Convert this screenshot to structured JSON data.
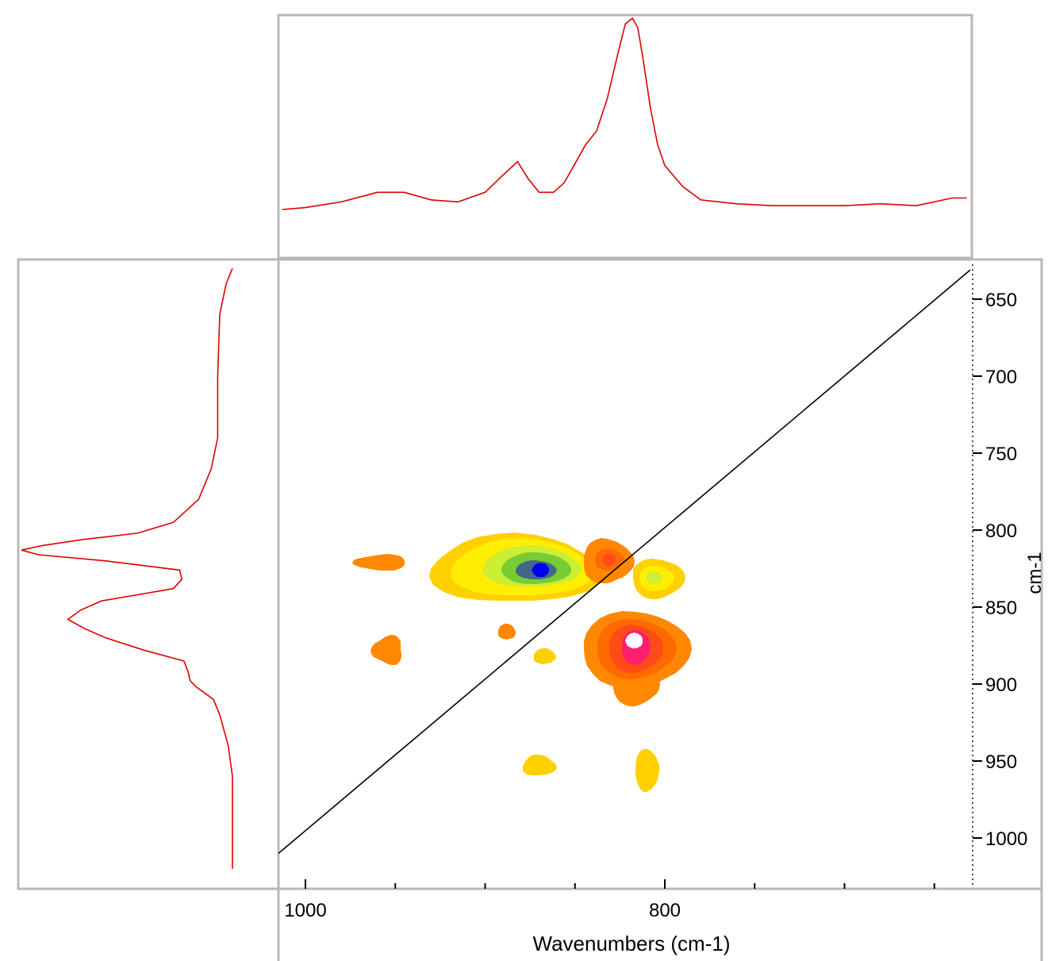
{
  "chart_data": {
    "type": "heatmap",
    "subtype": "2d-correlation-contour",
    "xlabel": "Wavenumbers (cm-1)",
    "ylabel": "cm-1",
    "x_ticks": [
      1000,
      800
    ],
    "y_ticks": [
      650,
      700,
      750,
      800,
      850,
      900,
      950,
      1000
    ],
    "x_range": [
      1015,
      630
    ],
    "y_range": [
      630,
      1025
    ],
    "diagonal": {
      "from": [
        1015,
        1010
      ],
      "to": [
        630,
        631
      ]
    },
    "contour_colors": {
      "level1": "#ffd000",
      "level2": "#ffee00",
      "level3": "#ccee33",
      "level4": "#77cc33",
      "level5": "#446688",
      "level6": "#0000ee",
      "pos1": "#ff8800",
      "pos2": "#ff6a00",
      "pos3": "#ff4a1a",
      "pos4": "#ff1f6e",
      "pos5": "#ffffff"
    },
    "peaks": [
      {
        "x": 870,
        "y": 826,
        "polarity": "negative",
        "levels": 6
      },
      {
        "x": 805,
        "y": 833,
        "polarity": "negative",
        "levels": 3
      },
      {
        "x": 832,
        "y": 818,
        "polarity": "positive",
        "levels": 3
      },
      {
        "x": 817,
        "y": 876,
        "polarity": "positive",
        "levels": 5
      },
      {
        "x": 958,
        "y": 821,
        "polarity": "positive",
        "levels": 1
      },
      {
        "x": 954,
        "y": 878,
        "polarity": "positive",
        "levels": 1
      },
      {
        "x": 888,
        "y": 866,
        "polarity": "positive",
        "levels": 1
      },
      {
        "x": 867,
        "y": 882,
        "polarity": "negative",
        "levels": 1
      },
      {
        "x": 870,
        "y": 953,
        "polarity": "negative",
        "levels": 1
      },
      {
        "x": 810,
        "y": 956,
        "polarity": "negative",
        "levels": 1
      }
    ],
    "top_spectrum": {
      "color": "#dd0000",
      "x": [
        1013,
        1000,
        980,
        960,
        945,
        930,
        915,
        900,
        890,
        882,
        876,
        870,
        862,
        856,
        850,
        844,
        838,
        832,
        826,
        822,
        818,
        815,
        812,
        808,
        804,
        800,
        790,
        780,
        760,
        740,
        720,
        700,
        680,
        660,
        640,
        632
      ],
      "y": [
        0.0,
        0.01,
        0.04,
        0.09,
        0.09,
        0.05,
        0.04,
        0.09,
        0.18,
        0.25,
        0.16,
        0.09,
        0.09,
        0.14,
        0.24,
        0.34,
        0.41,
        0.58,
        0.82,
        0.97,
        1.0,
        0.95,
        0.78,
        0.53,
        0.34,
        0.23,
        0.12,
        0.05,
        0.03,
        0.02,
        0.02,
        0.02,
        0.03,
        0.02,
        0.06,
        0.06
      ]
    },
    "left_spectrum": {
      "color": "#dd0000",
      "y": [
        630,
        640,
        660,
        700,
        740,
        760,
        780,
        795,
        802,
        806,
        810,
        813,
        816,
        820,
        826,
        832,
        838,
        842,
        846,
        852,
        858,
        864,
        870,
        878,
        885,
        892,
        898,
        902,
        910,
        920,
        940,
        960,
        990,
        1020
      ],
      "v": [
        0.0,
        0.03,
        0.06,
        0.07,
        0.07,
        0.1,
        0.16,
        0.28,
        0.45,
        0.7,
        0.9,
        1.0,
        0.92,
        0.6,
        0.25,
        0.24,
        0.28,
        0.45,
        0.62,
        0.72,
        0.78,
        0.7,
        0.6,
        0.42,
        0.23,
        0.21,
        0.2,
        0.17,
        0.09,
        0.06,
        0.02,
        0.0,
        0.0,
        0.0
      ]
    }
  }
}
